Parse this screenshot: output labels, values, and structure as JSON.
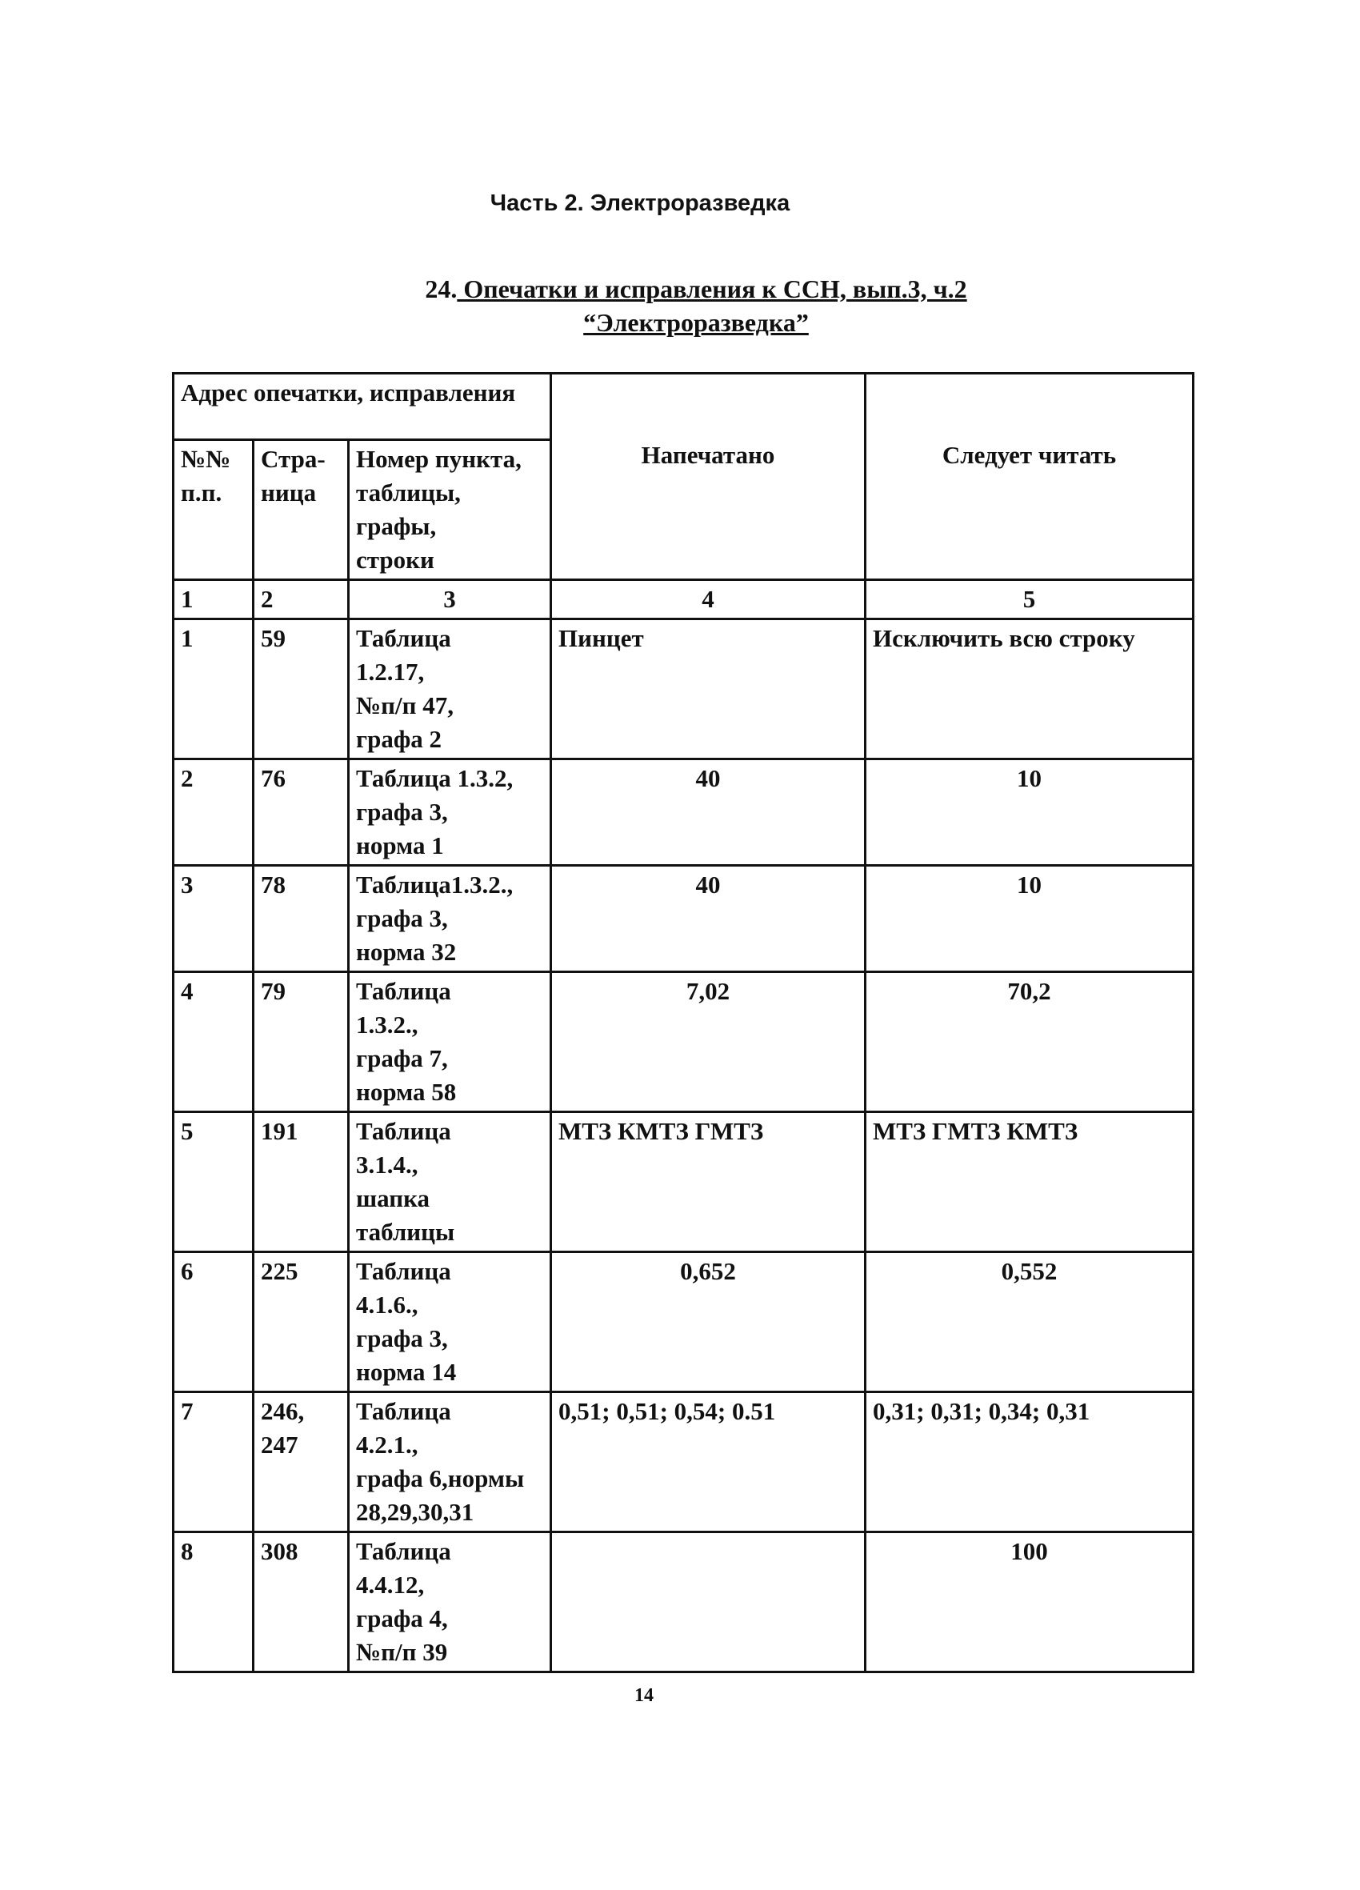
{
  "part_title": "Часть 2. Электроразведка",
  "heading": {
    "number": "24.",
    "line1": " Опечатки и исправления к ССН, вып.3, ч.2",
    "line2": "“Электроразведка”"
  },
  "table": {
    "header": {
      "address": "Адрес опечатки, исправления",
      "col1": "№№\nп.п.",
      "col2": "Стра-\nница",
      "col3": "Номер пункта,\nтаблицы,\nграфы,\nстроки",
      "col4": "Напечатано",
      "col5": "Следует читать"
    },
    "column_numbers": [
      "1",
      "2",
      "3",
      "4",
      "5"
    ],
    "rows": [
      {
        "n": "1",
        "page": "59",
        "ref": "Таблица\n1.2.17,\n№п/п 47,\nграфа 2",
        "printed": "Пинцет",
        "correct": "Исключить всю строку"
      },
      {
        "n": "2",
        "page": "76",
        "ref": "Таблица 1.3.2,\nграфа 3,\nнорма 1",
        "printed": "40",
        "correct": "10"
      },
      {
        "n": "3",
        "page": "78",
        "ref": "Таблица1.3.2.,\nграфа 3,\nнорма 32",
        "printed": "40",
        "correct": "10"
      },
      {
        "n": "4",
        "page": "79",
        "ref": "Таблица\n1.3.2.,\nграфа 7,\nнорма 58",
        "printed": "7,02",
        "correct": "70,2"
      },
      {
        "n": "5",
        "page": "191",
        "ref": "Таблица\n3.1.4.,\nшапка\nтаблицы",
        "printed": "МТЗ  КМТЗ  ГМТЗ",
        "correct": "МТЗ  ГМТЗ  КМТЗ"
      },
      {
        "n": "6",
        "page": "225",
        "ref": "Таблица\n4.1.6.,\nграфа 3,\nнорма 14",
        "printed": "0,652",
        "correct": "0,552"
      },
      {
        "n": "7",
        "page": "246,\n247",
        "ref": "Таблица\n4.2.1.,\nграфа 6,нормы\n28,29,30,31",
        "printed": "0,51; 0,51; 0,54; 0.51",
        "correct": "0,31; 0,31; 0,34; 0,31"
      },
      {
        "n": "8",
        "page": "308",
        "ref": "Таблица\n4.4.12,\nграфа 4,\n№п/п 39",
        "printed": "",
        "correct": "100"
      }
    ]
  },
  "page_number": "14"
}
